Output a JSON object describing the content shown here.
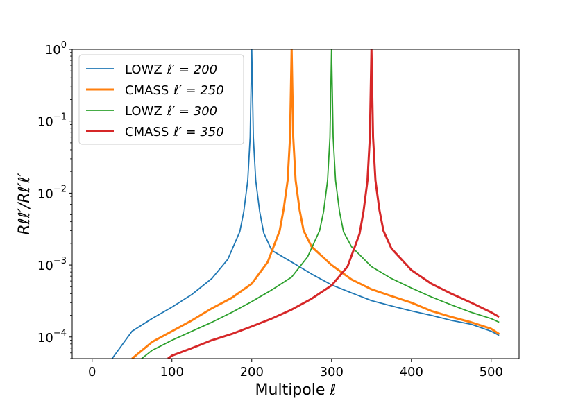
{
  "chart_data": {
    "type": "line",
    "xlabel": "Multipole ℓ",
    "ylabel": "Rℓℓ′/Rℓ′ℓ′",
    "xlim": [
      -25,
      535
    ],
    "ylim": [
      5e-05,
      1
    ],
    "yscale": "log",
    "xticks": [
      0,
      100,
      200,
      300,
      400,
      500
    ],
    "yticks": [
      {
        "value": 0.0001,
        "base": "10",
        "exp": "−4"
      },
      {
        "value": 0.001,
        "base": "10",
        "exp": "−3"
      },
      {
        "value": 0.01,
        "base": "10",
        "exp": "−2"
      },
      {
        "value": 0.1,
        "base": "10",
        "exp": "−1"
      },
      {
        "value": 1,
        "base": "10",
        "exp": "0"
      }
    ],
    "legend_position": "top-left",
    "series": [
      {
        "name": "LOWZ ℓ′ = 200",
        "survey": "LOWZ",
        "ell_prime": "ℓ′ = 200",
        "color": "#1f77b4",
        "linewidth": "thin",
        "x": [
          25,
          50,
          75,
          100,
          125,
          150,
          170,
          185,
          190,
          195,
          198,
          200,
          202,
          205,
          210,
          215,
          225,
          250,
          275,
          300,
          325,
          350,
          375,
          400,
          425,
          450,
          475,
          500,
          510
        ],
        "y": [
          5e-05,
          0.00012,
          0.00018,
          0.00026,
          0.00039,
          0.00065,
          0.0012,
          0.0029,
          0.0055,
          0.015,
          0.06,
          1.0,
          0.06,
          0.015,
          0.0055,
          0.0028,
          0.0016,
          0.0011,
          0.00075,
          0.00053,
          0.00041,
          0.00032,
          0.00027,
          0.00023,
          0.0002,
          0.00017,
          0.00015,
          0.00012,
          0.000105
        ]
      },
      {
        "name": "CMASS ℓ′ = 250",
        "survey": "CMASS",
        "ell_prime": "ℓ′ = 250",
        "color": "#ff7f0e",
        "linewidth": "thick",
        "x": [
          50,
          75,
          100,
          125,
          150,
          175,
          200,
          220,
          235,
          240,
          245,
          248,
          250,
          252,
          255,
          260,
          265,
          275,
          300,
          325,
          350,
          375,
          400,
          425,
          450,
          475,
          500,
          510
        ],
        "y": [
          5e-05,
          8.5e-05,
          0.00012,
          0.00017,
          0.00025,
          0.00035,
          0.00055,
          0.0011,
          0.003,
          0.006,
          0.015,
          0.06,
          1.0,
          0.06,
          0.015,
          0.0058,
          0.003,
          0.0018,
          0.001,
          0.00063,
          0.00046,
          0.00037,
          0.0003,
          0.00023,
          0.00019,
          0.00016,
          0.00013,
          0.00011
        ]
      },
      {
        "name": "LOWZ ℓ′ = 300",
        "survey": "LOWZ",
        "ell_prime": "ℓ′ = 300",
        "color": "#2ca02c",
        "linewidth": "thin",
        "x": [
          62,
          75,
          100,
          125,
          150,
          175,
          200,
          225,
          250,
          270,
          285,
          290,
          295,
          298,
          300,
          302,
          305,
          310,
          315,
          325,
          350,
          375,
          400,
          425,
          450,
          475,
          500,
          510
        ],
        "y": [
          5e-05,
          6.5e-05,
          9e-05,
          0.00012,
          0.00016,
          0.00022,
          0.00031,
          0.00045,
          0.00068,
          0.0013,
          0.003,
          0.0055,
          0.015,
          0.06,
          1.0,
          0.06,
          0.015,
          0.0055,
          0.0029,
          0.0018,
          0.00095,
          0.00065,
          0.00048,
          0.00036,
          0.00028,
          0.00022,
          0.00018,
          0.00016
        ]
      },
      {
        "name": "CMASS ℓ′ = 350",
        "survey": "CMASS",
        "ell_prime": "ℓ′ = 350",
        "color": "#d62728",
        "linewidth": "thick",
        "x": [
          95,
          100,
          125,
          150,
          175,
          200,
          225,
          250,
          275,
          300,
          320,
          335,
          340,
          345,
          348,
          350,
          352,
          355,
          360,
          365,
          375,
          400,
          425,
          450,
          475,
          500,
          510
        ],
        "y": [
          5e-05,
          5.5e-05,
          7e-05,
          9e-05,
          0.00011,
          0.00014,
          0.00018,
          0.00024,
          0.00034,
          0.00052,
          0.00095,
          0.0027,
          0.0055,
          0.015,
          0.06,
          1.0,
          0.06,
          0.015,
          0.0058,
          0.003,
          0.0017,
          0.00085,
          0.00055,
          0.0004,
          0.0003,
          0.00022,
          0.00019
        ]
      }
    ]
  }
}
